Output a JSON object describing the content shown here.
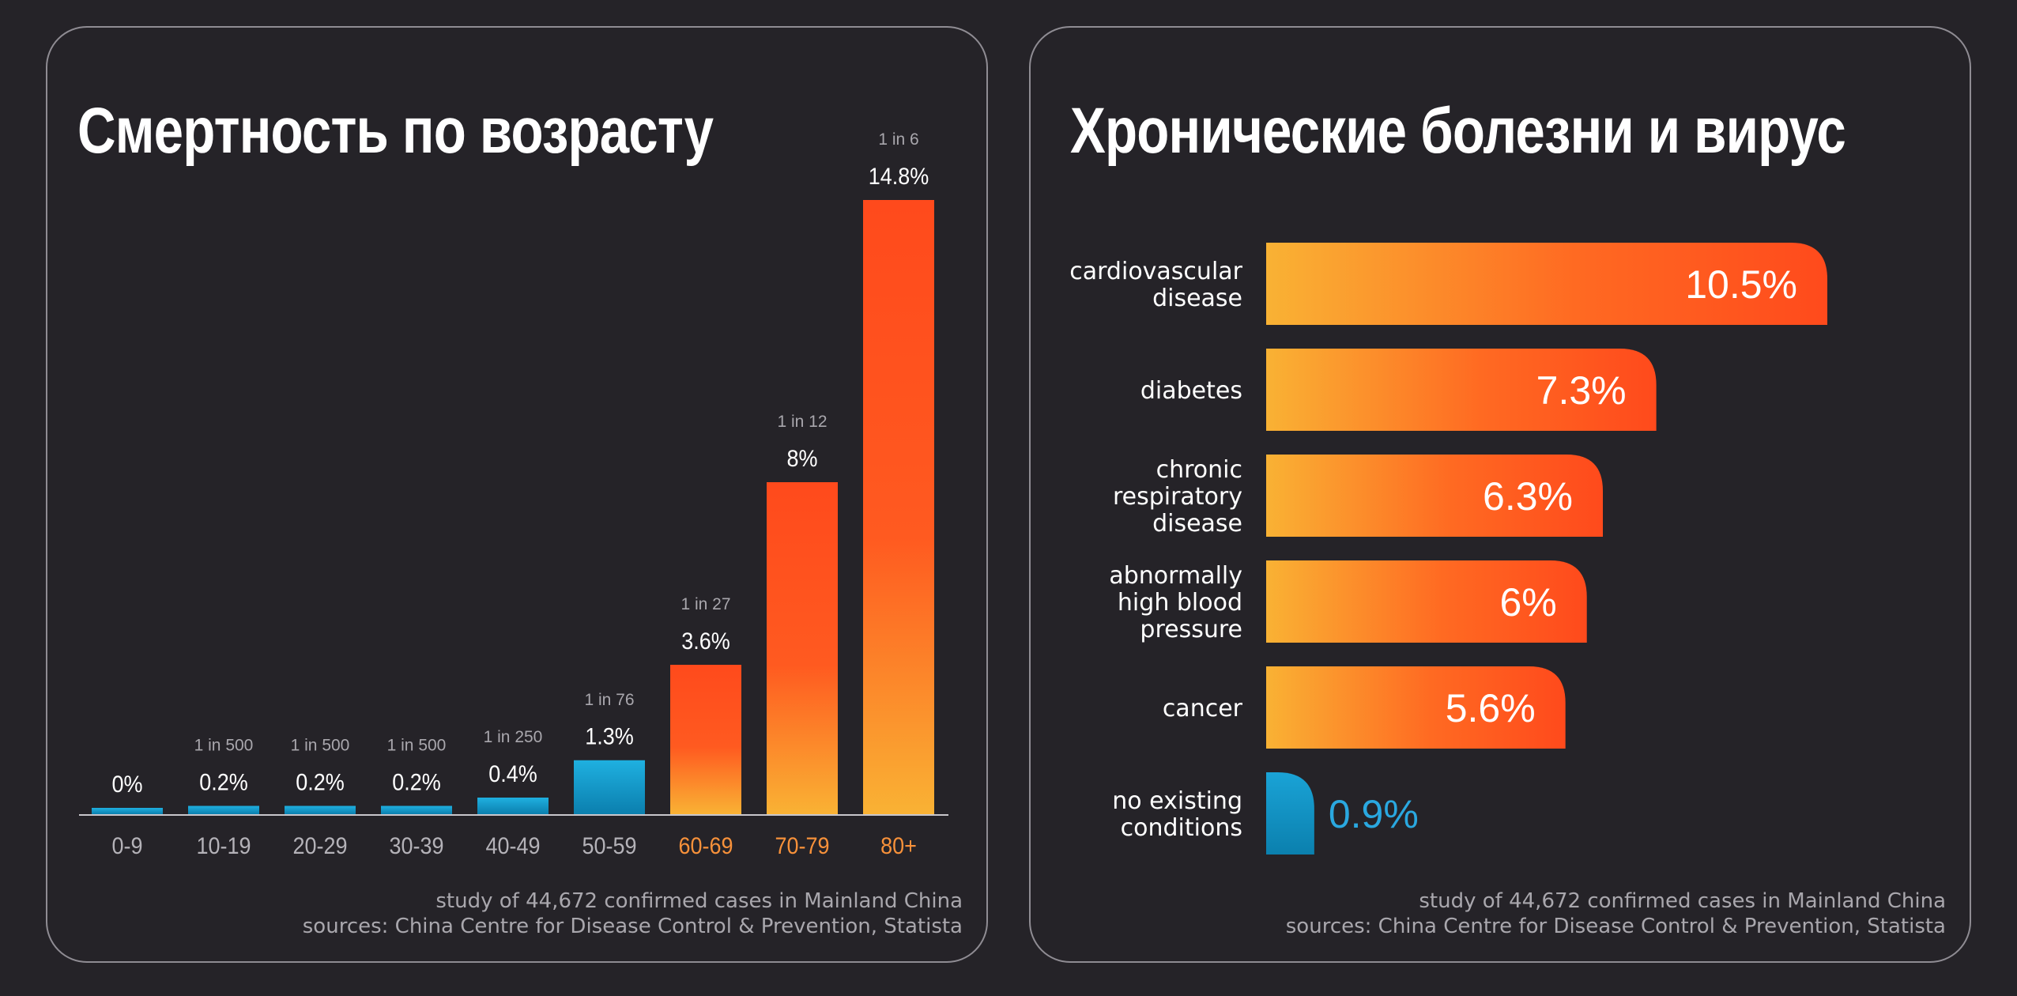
{
  "left_panel": {
    "title": "Смертность по возрасту",
    "footnote_line1": "study of 44,672 confirmed cases in Mainland China",
    "footnote_line2": "sources: China Centre for Disease Control & Prevention, Statista"
  },
  "right_panel": {
    "title": "Хронические болезни и вирус",
    "footnote_line1": "study of 44,672 confirmed cases in Mainland China",
    "footnote_line2": "sources: China Centre for Disease Control & Prevention, Statista"
  },
  "colors": {
    "background": "#252328",
    "blue": "#1aa3d6",
    "orange": "#ff4a1c",
    "yellow": "#f9b234",
    "highlight_label": "#f7913a",
    "muted_text": "#b4b2b8"
  },
  "chart_data": [
    {
      "type": "bar",
      "title": "Смертность по возрасту",
      "categories": [
        "0-9",
        "10-19",
        "20-29",
        "30-39",
        "40-49",
        "50-59",
        "60-69",
        "70-79",
        "80+"
      ],
      "values": [
        0,
        0.2,
        0.2,
        0.2,
        0.4,
        1.3,
        3.6,
        8,
        14.8
      ],
      "value_labels": [
        "0%",
        "0.2%",
        "0.2%",
        "0.2%",
        "0.4%",
        "1.3%",
        "3.6%",
        "8%",
        "14.8%"
      ],
      "ratio_labels": [
        "",
        "1 in 500",
        "1 in 500",
        "1 in 500",
        "1 in 250",
        "1 in 76",
        "1 in 27",
        "1 in 12",
        "1 in 6"
      ],
      "highlighted_categories": [
        "60-69",
        "70-79",
        "80+"
      ],
      "ylim": [
        0,
        14.8
      ],
      "grid": false
    },
    {
      "type": "bar",
      "orientation": "horizontal",
      "title": "Хронические болезни и вирус",
      "categories": [
        [
          "cardiovascular",
          "disease"
        ],
        [
          "diabetes"
        ],
        [
          "chronic",
          "respiratory",
          "disease"
        ],
        [
          "abnormally",
          "high blood",
          "pressure"
        ],
        [
          "cancer"
        ],
        [
          "no existing",
          "conditions"
        ]
      ],
      "values": [
        10.5,
        7.3,
        6.3,
        6,
        5.6,
        0.9
      ],
      "value_labels": [
        "10.5%",
        "7.3%",
        "6.3%",
        "6%",
        "5.6%",
        "0.9%"
      ],
      "xlim": [
        0,
        10.5
      ],
      "grid": false
    }
  ]
}
